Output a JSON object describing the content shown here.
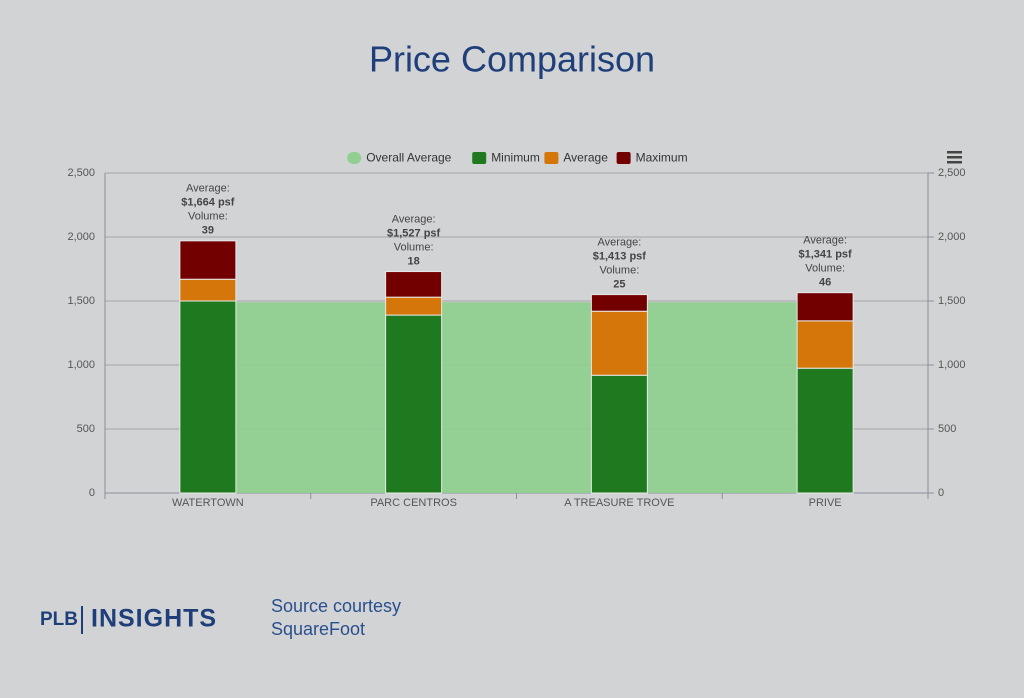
{
  "header": {
    "title": "Price Comparison"
  },
  "chart_data": {
    "type": "bar",
    "stacked": true,
    "categories": [
      "WATERTOWN",
      "PARC CENTROS",
      "A TREASURE TROVE",
      "PRIVE"
    ],
    "series": [
      {
        "name": "Overall Average",
        "type": "area",
        "color": "#90cf90",
        "values": [
          1490,
          1490,
          1490,
          1490
        ]
      },
      {
        "name": "Minimum",
        "color": "#1f7a1f",
        "values": [
          1500,
          1390,
          920,
          975
        ]
      },
      {
        "name": "Average",
        "color": "#d4760a",
        "values": [
          170,
          140,
          500,
          370
        ]
      },
      {
        "name": "Maximum",
        "color": "#730000",
        "values": [
          300,
          200,
          130,
          220
        ]
      }
    ],
    "annotations": [
      [
        "Average:",
        "$1,664 psf",
        "Volume:",
        "39"
      ],
      [
        "Average:",
        "$1,527 psf",
        "Volume:",
        "18"
      ],
      [
        "Average:",
        "$1,413 psf",
        "Volume:",
        "25"
      ],
      [
        "Average:",
        "$1,341 psf",
        "Volume:",
        "46"
      ]
    ],
    "ylim": [
      0,
      2500
    ],
    "yticks": [
      0,
      500,
      {
        "value": 1000,
        "label": "1,000"
      },
      {
        "value": 1500,
        "label": "1,500"
      },
      {
        "value": 2000,
        "label": "2,000"
      },
      {
        "value": 2500,
        "label": "2,500"
      }
    ],
    "y2lim": [
      0,
      2500
    ],
    "y2ticks": [
      0,
      500,
      {
        "value": 1000,
        "label": "1,000"
      },
      {
        "value": 1500,
        "label": "1,500"
      },
      {
        "value": 2000,
        "label": "2,000"
      },
      {
        "value": 2500,
        "label": "2,500"
      }
    ],
    "grid": true,
    "legend": "top"
  },
  "footer": {
    "brand": "PLB",
    "brand_sub": "INSIGHTS",
    "source_line1": "Source courtesy",
    "source_line2": "SquareFoot"
  }
}
